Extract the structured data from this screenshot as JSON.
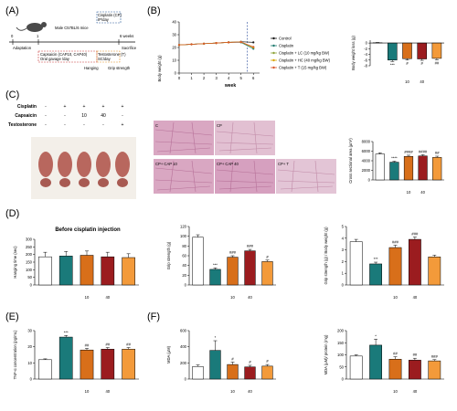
{
  "colors": {
    "control": "#ffffff",
    "cisplatin": "#1a7a7a",
    "cap10": "#d86f1a",
    "cap40": "#9b1c1f",
    "testo": "#f39a3a",
    "line_c": "#1a1a1a",
    "line_cp": "#1f7a6e",
    "line_lc": "#8ea33a",
    "line_hc": "#d8a400",
    "line_t": "#d9572a"
  },
  "labels": {
    "cisplatin": "Cisplatin",
    "capsaicin": "Capsaicin",
    "testosterone": "Testosterone",
    "plus": "+",
    "minus": "-",
    "ten": "10",
    "forty": "40"
  },
  "panelA": {
    "letter": "(A)",
    "mouse_label": "Male C57BL/6 mice",
    "day0": "0",
    "day1": "1",
    "weeks6": "6 weeks",
    "adaptation": "Adaptation",
    "cisplatin_box": "Cisplatin (CP)",
    "ip": "IP/day",
    "capsaicin_box": "Capsaicin (CAP10, CAP40)",
    "oral": "Oral gavage /day",
    "testo_box": "Testosterone (T)",
    "sc": "SC/day",
    "sacrifice": "Sacrifice",
    "hanging": "Hanging",
    "grip": "Grip strength"
  },
  "panelB": {
    "letter": "(B)",
    "ylabel": "Body weight (g)",
    "xlabel": "week",
    "xticks": [
      "0",
      "1",
      "2",
      "3",
      "4",
      "5",
      "6"
    ],
    "yticks": [
      "0",
      "10",
      "20",
      "30",
      "40"
    ],
    "legend": [
      "Control",
      "Cisplatin",
      "Cisplatin + LC (10 mg/kg BW)",
      "Cisplatin + HC (40 mg/kg BW)",
      "Cisplatin + T (15 mg/kg BW)"
    ]
  },
  "panelC": {
    "letter": "(C)",
    "micro": [
      "C",
      "CP",
      "CP+ CAP 10",
      "CP+ CAP 40",
      "CP+ T"
    ]
  },
  "panelD": {
    "letter": "(D)",
    "before": "Before cisplatin injection"
  },
  "panelE": {
    "letter": "(E)"
  },
  "panelF": {
    "letter": "(F)"
  },
  "chart_data": [
    {
      "id": "bw_line",
      "type": "line",
      "xlabel": "week",
      "ylabel": "Body weight (g)",
      "x": [
        0,
        1,
        2,
        3,
        4,
        5,
        6
      ],
      "ylim": [
        0,
        40
      ],
      "series": [
        {
          "name": "Control",
          "values": [
            22,
            22.5,
            23,
            23.5,
            24,
            24.5,
            24
          ]
        },
        {
          "name": "Cisplatin",
          "values": [
            22,
            22.5,
            23,
            23.5,
            24,
            24,
            19
          ]
        },
        {
          "name": "Cisplatin + LC (10 mg/kg BW)",
          "values": [
            22,
            22.5,
            23,
            23.5,
            24,
            24.3,
            20
          ]
        },
        {
          "name": "Cisplatin + HC (40 mg/kg BW)",
          "values": [
            22,
            22.5,
            23,
            23.5,
            24,
            24.3,
            20
          ]
        },
        {
          "name": "Cisplatin + T (15 mg/kg BW)",
          "values": [
            22,
            22.5,
            23,
            23.5,
            24,
            24.3,
            20.5
          ]
        }
      ]
    },
    {
      "id": "bw_loss",
      "type": "bar",
      "ylabel": "Body weight loss (g)",
      "ylim": [
        -8,
        1
      ],
      "yticks": [
        "0",
        "-2",
        "-4",
        "-6",
        "-8"
      ],
      "values": [
        0.1,
        -6,
        -5.5,
        -5.6,
        -5.4
      ],
      "errors": [
        0.1,
        0.5,
        0.5,
        0.5,
        0.5
      ],
      "sig": [
        "",
        "***",
        "#",
        "#",
        "##"
      ],
      "cap": [
        "",
        "",
        "10",
        "40",
        ""
      ]
    },
    {
      "id": "csa",
      "type": "bar",
      "ylabel": "Cross sectional area (µm²)",
      "ylim": [
        0,
        8000
      ],
      "yticks": [
        "0",
        "2000",
        "4000",
        "6000",
        "8000"
      ],
      "values": [
        5400,
        3700,
        4900,
        5000,
        4700
      ],
      "errors": [
        250,
        200,
        250,
        250,
        250
      ],
      "sig": [
        "",
        "****",
        "####",
        "####",
        "##"
      ],
      "cap": [
        "",
        "",
        "10",
        "40",
        ""
      ]
    },
    {
      "id": "hang",
      "type": "bar",
      "ylabel": "Hanging time (sec)",
      "ylim": [
        0,
        300
      ],
      "yticks": [
        "0",
        "50",
        "100",
        "150",
        "200",
        "250",
        "300"
      ],
      "values": [
        185,
        190,
        195,
        185,
        180
      ],
      "errors": [
        30,
        30,
        28,
        30,
        25
      ],
      "sig": [
        "",
        "",
        "",
        "",
        ""
      ],
      "cap": [
        "",
        "",
        "10",
        "40",
        ""
      ]
    },
    {
      "id": "grip",
      "type": "bar",
      "ylabel": "Grip strength (g)",
      "ylim": [
        0,
        120
      ],
      "yticks": [
        "0",
        "20",
        "40",
        "60",
        "80",
        "100",
        "120"
      ],
      "values": [
        98,
        32,
        57,
        70,
        48
      ],
      "errors": [
        5,
        3,
        3,
        3,
        3
      ],
      "sig": [
        "",
        "***",
        "###",
        "###",
        "#"
      ],
      "cap": [
        "",
        "",
        "10",
        "40",
        ""
      ]
    },
    {
      "id": "grip_bw",
      "type": "bar",
      "ylabel": "Grip strength (g) / Body weight (g)",
      "ylim": [
        0,
        5
      ],
      "yticks": [
        "0",
        "1",
        "2",
        "3",
        "4",
        "5"
      ],
      "values": [
        3.7,
        1.8,
        3.2,
        3.9,
        2.4
      ],
      "errors": [
        0.2,
        0.15,
        0.2,
        0.2,
        0.15
      ],
      "sig": [
        "",
        "***",
        "###",
        "###",
        ""
      ],
      "cap": [
        "",
        "",
        "10",
        "40",
        ""
      ]
    },
    {
      "id": "tnf",
      "type": "bar",
      "ylabel": "TNF-α concentration (pg/mL)",
      "ylim": [
        0,
        30
      ],
      "yticks": [
        "0",
        "10",
        "20",
        "30"
      ],
      "values": [
        12,
        26,
        18,
        18.5,
        18.5
      ],
      "errors": [
        0.5,
        1,
        1,
        1,
        1
      ],
      "sig": [
        "",
        "***",
        "##",
        "##",
        "##"
      ],
      "cap": [
        "",
        "",
        "10",
        "40",
        ""
      ]
    },
    {
      "id": "mda",
      "type": "bar",
      "ylabel": "MDA (µM)",
      "ylim": [
        0,
        600
      ],
      "yticks": [
        "0",
        "200",
        "400",
        "600"
      ],
      "values": [
        155,
        355,
        180,
        150,
        160
      ],
      "errors": [
        20,
        120,
        30,
        20,
        20
      ],
      "sig": [
        "",
        "*",
        "#",
        "#",
        "#"
      ],
      "cap": [
        "",
        "",
        "10",
        "40",
        ""
      ]
    },
    {
      "id": "mda_prot",
      "type": "bar",
      "ylabel": "MDA (µM)/ protein (mg)",
      "ylim": [
        0,
        200
      ],
      "yticks": [
        "0",
        "50",
        "100",
        "150",
        "200"
      ],
      "values": [
        95,
        140,
        82,
        78,
        75
      ],
      "errors": [
        5,
        25,
        10,
        8,
        5
      ],
      "sig": [
        "",
        "*",
        "##",
        "##",
        "###"
      ],
      "cap": [
        "",
        "",
        "10",
        "40",
        ""
      ]
    }
  ]
}
